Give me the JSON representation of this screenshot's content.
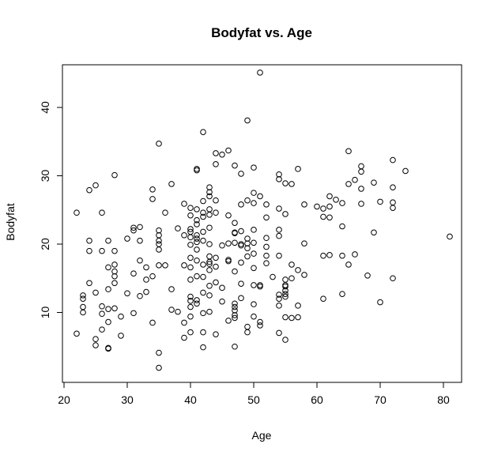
{
  "chart_data": {
    "type": "scatter",
    "title": "Bodyfat vs. Age",
    "xlabel": "Age",
    "ylabel": "Bodyfat",
    "xlim": [
      20,
      80
    ],
    "ylim": [
      0,
      45
    ],
    "x_ticks": [
      20,
      30,
      40,
      50,
      60,
      70,
      80
    ],
    "y_ticks": [
      10,
      20,
      30,
      40
    ],
    "x_tick_labels": [
      "20",
      "30",
      "40",
      "50",
      "60",
      "70",
      "80"
    ],
    "y_tick_labels": [
      "10",
      "20",
      "30",
      "40"
    ],
    "grid": false,
    "legend": "none",
    "marker": "open-circle",
    "marker_color": "#000000",
    "points": [
      [
        22,
        24.6
      ],
      [
        22,
        6.9
      ],
      [
        23,
        12.5
      ],
      [
        23,
        12.0
      ],
      [
        23,
        10.8
      ],
      [
        23,
        10.0
      ],
      [
        24,
        14.3
      ],
      [
        24,
        19.0
      ],
      [
        24,
        20.5
      ],
      [
        24,
        27.9
      ],
      [
        25,
        28.6
      ],
      [
        25,
        12.9
      ],
      [
        25,
        6.1
      ],
      [
        25,
        5.2
      ],
      [
        26,
        24.6
      ],
      [
        26,
        19.0
      ],
      [
        26,
        10.9
      ],
      [
        26,
        9.8
      ],
      [
        26,
        7.5
      ],
      [
        27,
        20.5
      ],
      [
        27,
        16.6
      ],
      [
        27,
        13.4
      ],
      [
        27,
        10.5
      ],
      [
        27,
        8.6
      ],
      [
        27,
        4.8
      ],
      [
        27,
        4.7
      ],
      [
        28,
        30.1
      ],
      [
        28,
        19.0
      ],
      [
        28,
        17.0
      ],
      [
        28,
        16.0
      ],
      [
        28,
        15.3
      ],
      [
        28,
        14.3
      ],
      [
        28,
        10.6
      ],
      [
        29,
        9.4
      ],
      [
        29,
        6.6
      ],
      [
        30,
        20.8
      ],
      [
        30,
        12.8
      ],
      [
        31,
        22.4
      ],
      [
        31,
        22.0
      ],
      [
        31,
        15.7
      ],
      [
        31,
        9.9
      ],
      [
        32,
        22.5
      ],
      [
        32,
        20.5
      ],
      [
        32,
        17.6
      ],
      [
        32,
        12.4
      ],
      [
        33,
        16.6
      ],
      [
        33,
        14.8
      ],
      [
        33,
        13.0
      ],
      [
        34,
        28.0
      ],
      [
        34,
        26.6
      ],
      [
        34,
        15.3
      ],
      [
        34,
        8.5
      ],
      [
        35,
        34.7
      ],
      [
        35,
        22.0
      ],
      [
        35,
        21.3
      ],
      [
        35,
        20.5
      ],
      [
        35,
        20.0
      ],
      [
        35,
        19.2
      ],
      [
        35,
        16.9
      ],
      [
        35,
        4.1
      ],
      [
        35,
        1.9
      ],
      [
        36,
        24.6
      ],
      [
        36,
        16.9
      ],
      [
        37,
        28.8
      ],
      [
        37,
        10.4
      ],
      [
        37,
        13.4
      ],
      [
        38,
        10.1
      ],
      [
        38,
        22.3
      ],
      [
        39,
        25.9
      ],
      [
        39,
        21.3
      ],
      [
        39,
        16.9
      ],
      [
        39,
        8.5
      ],
      [
        39,
        6.3
      ],
      [
        40,
        25.3
      ],
      [
        40,
        24.2
      ],
      [
        40,
        22.2
      ],
      [
        40,
        21.8
      ],
      [
        40,
        21.0
      ],
      [
        40,
        19.9
      ],
      [
        40,
        18.0
      ],
      [
        40,
        16.6
      ],
      [
        40,
        14.8
      ],
      [
        40,
        12.3
      ],
      [
        40,
        11.7
      ],
      [
        40,
        10.8
      ],
      [
        40,
        9.4
      ],
      [
        40,
        7.1
      ],
      [
        41,
        31.0
      ],
      [
        41,
        30.8
      ],
      [
        41,
        25.1
      ],
      [
        41,
        23.5
      ],
      [
        41,
        22.9
      ],
      [
        41,
        21.3
      ],
      [
        41,
        20.8
      ],
      [
        41,
        20.3
      ],
      [
        41,
        19.2
      ],
      [
        41,
        17.6
      ],
      [
        41,
        15.3
      ],
      [
        41,
        11.8
      ],
      [
        41,
        11.3
      ],
      [
        42,
        36.4
      ],
      [
        42,
        26.3
      ],
      [
        42,
        24.6
      ],
      [
        42,
        24.0
      ],
      [
        42,
        21.8
      ],
      [
        42,
        20.5
      ],
      [
        42,
        17.0
      ],
      [
        42,
        15.2
      ],
      [
        42,
        12.9
      ],
      [
        42,
        9.9
      ],
      [
        42,
        7.1
      ],
      [
        42,
        4.9
      ],
      [
        43,
        28.3
      ],
      [
        43,
        27.6
      ],
      [
        43,
        27.0
      ],
      [
        43,
        25.1
      ],
      [
        43,
        24.3
      ],
      [
        43,
        22.4
      ],
      [
        43,
        20.0
      ],
      [
        43,
        18.2
      ],
      [
        43,
        17.4
      ],
      [
        43,
        17.1
      ],
      [
        43,
        16.2
      ],
      [
        43,
        13.9
      ],
      [
        43,
        12.5
      ],
      [
        43,
        10.1
      ],
      [
        44,
        33.3
      ],
      [
        44,
        31.7
      ],
      [
        44,
        26.4
      ],
      [
        44,
        24.6
      ],
      [
        44,
        18.0
      ],
      [
        44,
        16.7
      ],
      [
        44,
        14.4
      ],
      [
        44,
        6.8
      ],
      [
        45,
        33.1
      ],
      [
        45,
        19.8
      ],
      [
        45,
        13.6
      ],
      [
        45,
        11.6
      ],
      [
        46,
        33.7
      ],
      [
        46,
        24.2
      ],
      [
        46,
        20.1
      ],
      [
        46,
        17.7
      ],
      [
        46,
        17.5
      ],
      [
        46,
        8.8
      ],
      [
        47,
        31.5
      ],
      [
        47,
        23.1
      ],
      [
        47,
        21.7
      ],
      [
        47,
        21.6
      ],
      [
        47,
        20.2
      ],
      [
        47,
        16.0
      ],
      [
        47,
        11.3
      ],
      [
        47,
        10.8
      ],
      [
        47,
        10.3
      ],
      [
        47,
        9.6
      ],
      [
        47,
        9.2
      ],
      [
        47,
        5.0
      ],
      [
        48,
        30.3
      ],
      [
        48,
        25.8
      ],
      [
        48,
        21.9
      ],
      [
        48,
        20.0
      ],
      [
        48,
        19.8
      ],
      [
        48,
        17.3
      ],
      [
        48,
        14.2
      ],
      [
        48,
        12.1
      ],
      [
        49,
        38.1
      ],
      [
        49,
        26.4
      ],
      [
        49,
        20.8
      ],
      [
        49,
        20.1
      ],
      [
        49,
        19.4
      ],
      [
        49,
        18.2
      ],
      [
        49,
        7.9
      ],
      [
        49,
        7.1
      ],
      [
        50,
        31.2
      ],
      [
        50,
        27.5
      ],
      [
        50,
        26.0
      ],
      [
        50,
        22.1
      ],
      [
        50,
        20.2
      ],
      [
        50,
        18.6
      ],
      [
        50,
        16.5
      ],
      [
        50,
        14.0
      ],
      [
        50,
        11.2
      ],
      [
        50,
        9.4
      ],
      [
        51,
        45.1
      ],
      [
        51,
        27.0
      ],
      [
        51,
        14.0
      ],
      [
        51,
        13.8
      ],
      [
        51,
        8.6
      ],
      [
        51,
        8.1
      ],
      [
        52,
        25.8
      ],
      [
        52,
        23.9
      ],
      [
        52,
        20.9
      ],
      [
        52,
        19.6
      ],
      [
        52,
        18.3
      ],
      [
        52,
        17.2
      ],
      [
        53,
        15.2
      ],
      [
        54,
        30.2
      ],
      [
        54,
        29.5
      ],
      [
        54,
        25.2
      ],
      [
        54,
        22.1
      ],
      [
        54,
        21.2
      ],
      [
        54,
        18.3
      ],
      [
        54,
        12.6
      ],
      [
        54,
        12.0
      ],
      [
        54,
        11.0
      ],
      [
        54,
        7.0
      ],
      [
        55,
        28.9
      ],
      [
        55,
        24.4
      ],
      [
        55,
        14.8
      ],
      [
        55,
        14.0
      ],
      [
        55,
        13.8
      ],
      [
        55,
        13.2
      ],
      [
        55,
        12.7
      ],
      [
        55,
        12.3
      ],
      [
        55,
        9.3
      ],
      [
        55,
        6.0
      ],
      [
        56,
        28.8
      ],
      [
        56,
        17.0
      ],
      [
        56,
        15.0
      ],
      [
        56,
        9.2
      ],
      [
        57,
        31.0
      ],
      [
        57,
        16.2
      ],
      [
        57,
        11.0
      ],
      [
        57,
        9.3
      ],
      [
        58,
        25.8
      ],
      [
        58,
        20.1
      ],
      [
        58,
        15.5
      ],
      [
        60,
        25.5
      ],
      [
        61,
        25.2
      ],
      [
        61,
        24.0
      ],
      [
        61,
        18.3
      ],
      [
        61,
        12.0
      ],
      [
        62,
        27.0
      ],
      [
        62,
        25.5
      ],
      [
        62,
        23.9
      ],
      [
        62,
        18.4
      ],
      [
        63,
        26.5
      ],
      [
        64,
        26.0
      ],
      [
        64,
        22.6
      ],
      [
        64,
        18.3
      ],
      [
        64,
        12.7
      ],
      [
        65,
        33.6
      ],
      [
        65,
        28.8
      ],
      [
        65,
        17.0
      ],
      [
        66,
        29.4
      ],
      [
        66,
        18.5
      ],
      [
        67,
        31.4
      ],
      [
        67,
        30.6
      ],
      [
        67,
        28.1
      ],
      [
        67,
        25.9
      ],
      [
        68,
        15.4
      ],
      [
        69,
        29.0
      ],
      [
        69,
        21.7
      ],
      [
        70,
        26.2
      ],
      [
        70,
        11.5
      ],
      [
        72,
        32.3
      ],
      [
        72,
        28.3
      ],
      [
        72,
        26.1
      ],
      [
        72,
        25.3
      ],
      [
        72,
        15.0
      ],
      [
        74,
        30.7
      ],
      [
        81,
        21.1
      ]
    ]
  }
}
